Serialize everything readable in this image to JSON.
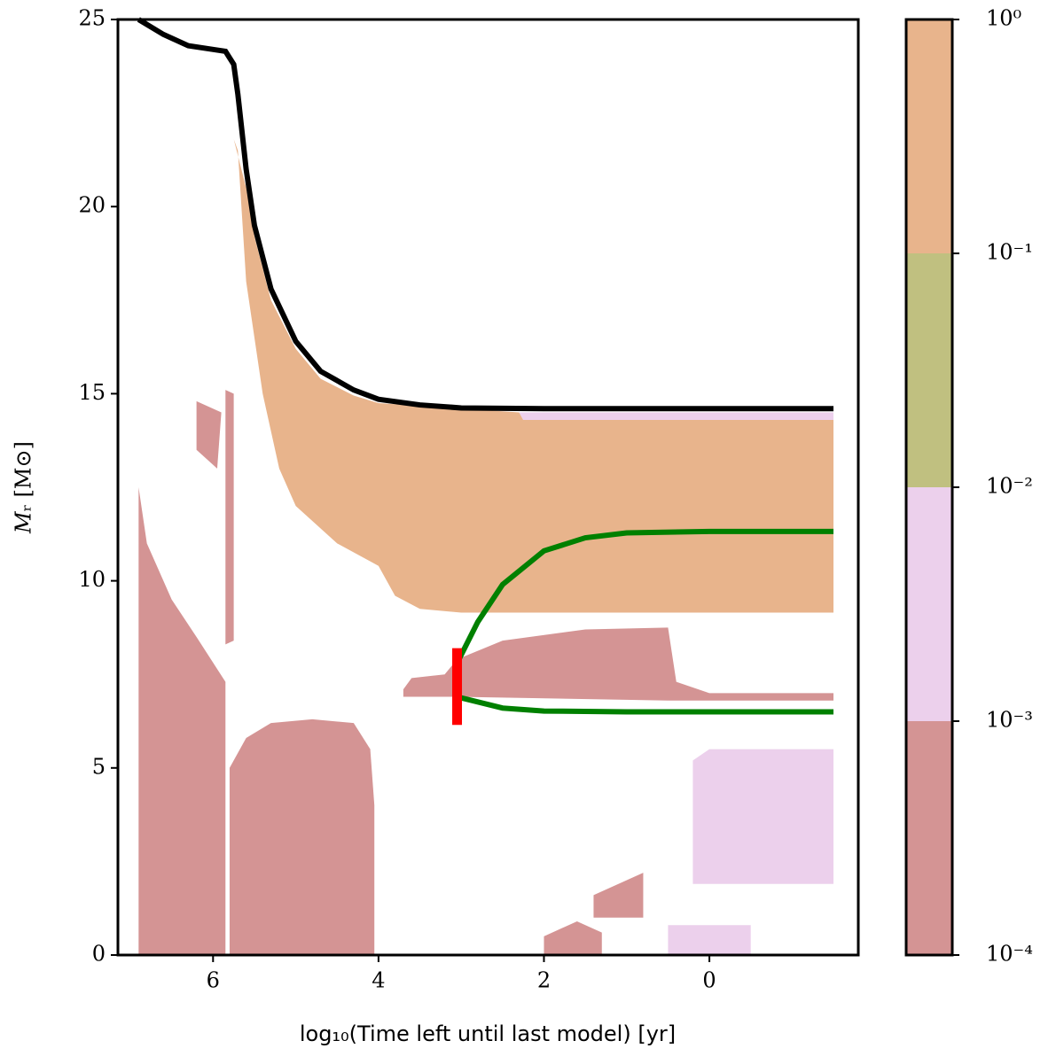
{
  "chart_data": {
    "type": "kippenhahn",
    "xlabel": "log₁₀(Time left until last model) [yr]",
    "ylabel": "𝑀ᵣ [M⊙]",
    "xlim": [
      7.15,
      -1.8
    ],
    "ylim": [
      0,
      25
    ],
    "xticks": [
      6,
      4,
      2,
      0
    ],
    "yticks": [
      0,
      5,
      10,
      15,
      20,
      25
    ],
    "regions": [
      {
        "color": "#e8b48c",
        "x": [
          5.75,
          5.6,
          5.5,
          5.3,
          5.0,
          4.7,
          4.3,
          4.0,
          2.3,
          2.25,
          -1.5,
          -1.5,
          3.0,
          3.5,
          3.8,
          4.0,
          4.5,
          5.0,
          5.2,
          5.4,
          5.6,
          5.7
        ],
        "y": [
          21.8,
          20.5,
          19.2,
          17.5,
          16.2,
          15.4,
          14.95,
          14.75,
          14.5,
          14.3,
          14.3,
          9.15,
          9.15,
          9.25,
          9.6,
          10.4,
          11.0,
          12.0,
          13.0,
          15.0,
          18.0,
          21.5
        ]
      },
      {
        "color": "#ecd0ec",
        "x": [
          2.3,
          -1.5,
          -1.5,
          2.25
        ],
        "y": [
          14.5,
          14.5,
          14.3,
          14.3
        ]
      },
      {
        "color": "#d49494",
        "x": [
          6.9,
          6.8,
          6.5,
          6.2,
          5.85,
          5.85,
          6.9
        ],
        "y": [
          12.5,
          11.0,
          9.5,
          8.5,
          7.3,
          0,
          0
        ]
      },
      {
        "color": "#d49494",
        "x": [
          5.8,
          5.8,
          5.6,
          5.3,
          4.8,
          4.3,
          4.1,
          4.05,
          4.05
        ],
        "y": [
          0,
          5.0,
          5.8,
          6.2,
          6.3,
          6.2,
          5.5,
          4.0,
          0
        ]
      },
      {
        "color": "#d49494",
        "x": [
          3.7,
          3.6,
          3.2,
          3.05,
          2.5,
          1.5,
          0.5,
          0.4,
          0,
          -1.5,
          -1.5,
          0.5,
          3.05,
          3.7
        ],
        "y": [
          7.1,
          7.4,
          7.5,
          7.9,
          8.4,
          8.7,
          8.75,
          7.3,
          7.0,
          7.0,
          6.8,
          6.8,
          6.9,
          6.9
        ]
      },
      {
        "color": "#ecd0ec",
        "x": [
          0.2,
          0.2,
          0,
          -1.5,
          -1.5,
          0.2
        ],
        "y": [
          2.0,
          5.2,
          5.5,
          5.5,
          1.9,
          1.9
        ]
      },
      {
        "color": "#d49494",
        "x": [
          1.4,
          1.4,
          0.8,
          0.8
        ],
        "y": [
          1.0,
          1.6,
          2.2,
          1.0
        ]
      },
      {
        "color": "#d49494",
        "x": [
          2.0,
          2.0,
          1.6,
          1.3,
          1.3
        ],
        "y": [
          0,
          0.5,
          0.9,
          0.6,
          0
        ]
      },
      {
        "color": "#ecd0ec",
        "x": [
          0.5,
          0.5,
          -0.5,
          -0.5
        ],
        "y": [
          0,
          0.8,
          0.8,
          0
        ]
      },
      {
        "color": "#d49494",
        "x": [
          5.9,
          6.2,
          6.2,
          5.95
        ],
        "y": [
          14.5,
          14.8,
          13.5,
          13.0
        ]
      },
      {
        "color": "#d49494",
        "x": [
          5.85,
          5.85,
          5.75,
          5.75
        ],
        "y": [
          15.1,
          8.3,
          8.4,
          15.0
        ]
      }
    ],
    "series": [
      {
        "color": "#000000",
        "x": [
          6.9,
          6.6,
          6.3,
          6.0,
          5.85,
          5.75,
          5.7,
          5.6,
          5.5,
          5.3,
          5.0,
          4.7,
          4.3,
          4.0,
          3.5,
          3.0,
          2.0,
          0,
          -1.5
        ],
        "values": [
          25,
          24.6,
          24.3,
          24.2,
          24.15,
          23.8,
          23,
          21,
          19.5,
          17.8,
          16.4,
          15.6,
          15.1,
          14.85,
          14.7,
          14.62,
          14.6,
          14.6,
          14.6
        ]
      },
      {
        "color": "#008000",
        "x": [
          3.05,
          2.8,
          2.5,
          2.0,
          1.5,
          1.0,
          0,
          -1.5
        ],
        "values": [
          7.8,
          8.9,
          9.9,
          10.8,
          11.15,
          11.28,
          11.32,
          11.32
        ]
      },
      {
        "color": "#008000",
        "x": [
          3.05,
          2.5,
          2.0,
          1.0,
          -1.5
        ],
        "values": [
          6.9,
          6.6,
          6.52,
          6.5,
          6.5
        ]
      },
      {
        "color": "#ff0000",
        "x": [
          3.05,
          3.05
        ],
        "values": [
          6.15,
          8.2
        ]
      }
    ],
    "colorbar": {
      "log": true,
      "lim": [
        0.0001,
        1
      ],
      "colors": [
        "#d49494",
        "#ecd0ec",
        "#c0c080",
        "#e8b48c"
      ],
      "ticks": [
        {
          "value": 1,
          "label": "10⁰"
        },
        {
          "value": 0.1,
          "label": "10⁻¹"
        },
        {
          "value": 0.01,
          "label": "10⁻²"
        },
        {
          "value": 0.001,
          "label": "10⁻³"
        },
        {
          "value": 0.0001,
          "label": "10⁻⁴"
        }
      ]
    }
  }
}
